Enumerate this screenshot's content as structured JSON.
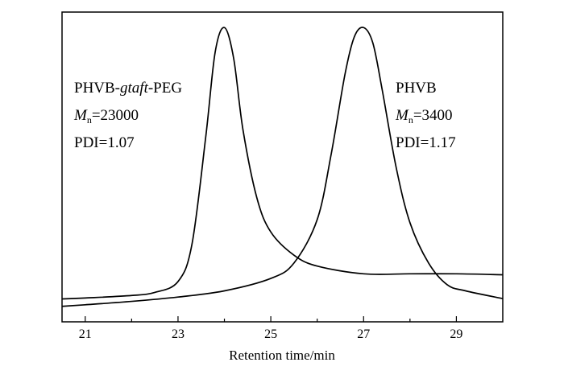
{
  "chart_data": {
    "type": "line",
    "xlabel": "Retention time/min",
    "ylabel": "",
    "xlim": [
      20.5,
      30.0
    ],
    "x_ticks": [
      "21",
      "23",
      "25",
      "27",
      "29"
    ],
    "grid": false,
    "legend": "none",
    "line_color": "#000000",
    "series": [
      {
        "x": [
          20.5,
          21.0,
          22.0,
          22.5,
          23.0,
          23.3,
          23.6,
          23.8,
          24.0,
          24.2,
          24.4,
          24.7,
          25.0,
          25.5,
          26.0,
          27.0,
          28.0,
          29.0,
          30.0
        ],
        "y": [
          0.074,
          0.077,
          0.085,
          0.095,
          0.13,
          0.25,
          0.6,
          0.87,
          0.95,
          0.85,
          0.62,
          0.4,
          0.29,
          0.215,
          0.18,
          0.155,
          0.155,
          0.155,
          0.152
        ]
      },
      {
        "x": [
          20.5,
          21.0,
          22.0,
          23.0,
          24.0,
          25.0,
          25.5,
          26.0,
          26.3,
          26.6,
          26.8,
          27.0,
          27.2,
          27.4,
          27.7,
          28.0,
          28.4,
          28.8,
          29.2,
          30.0
        ],
        "y": [
          0.05,
          0.055,
          0.066,
          0.08,
          0.1,
          0.14,
          0.19,
          0.33,
          0.54,
          0.8,
          0.92,
          0.95,
          0.9,
          0.75,
          0.5,
          0.32,
          0.19,
          0.12,
          0.1,
          0.075
        ]
      }
    ]
  },
  "annotations": {
    "left": {
      "name_prefix": "PHVB-",
      "name_italic": "gtaft",
      "name_suffix": "-PEG",
      "mn_symbol": "M",
      "mn_subscript": "n",
      "mn_value": "=23000",
      "pdi": "PDI=1.07"
    },
    "right": {
      "name": "PHVB",
      "mn_symbol": "M",
      "mn_subscript": "n",
      "mn_value": "=3400",
      "pdi": "PDI=1.17"
    }
  }
}
